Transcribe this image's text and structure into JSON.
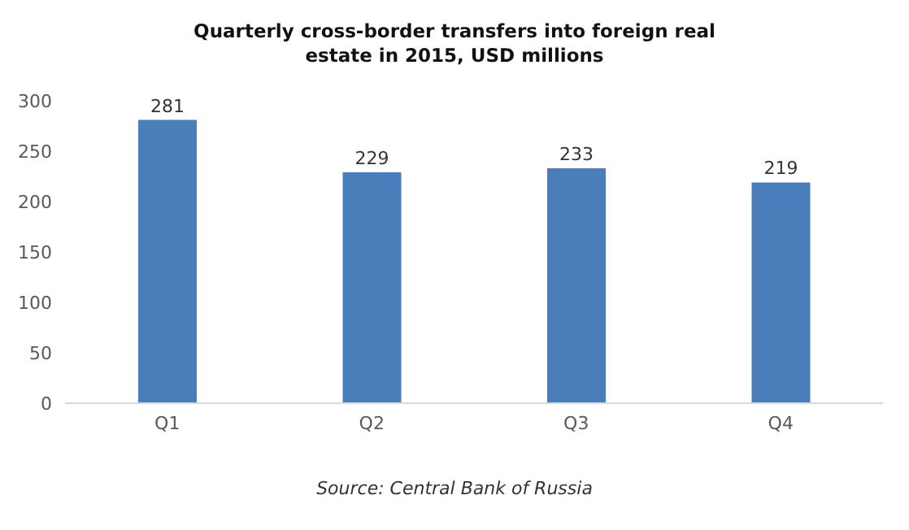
{
  "chart_data": {
    "type": "bar",
    "title": "Quarterly cross-border transfers into foreign real estate in 2015, USD millions",
    "categories": [
      "Q1",
      "Q2",
      "Q3",
      "Q4"
    ],
    "values": [
      281,
      229,
      233,
      219
    ],
    "color": "#4a7ebb",
    "ylim": [
      0,
      300
    ],
    "yticks": [
      0,
      50,
      100,
      150,
      200,
      250,
      300
    ],
    "grid": false,
    "data_labels": true,
    "annotations": [
      "Source: Central Bank of Russia"
    ]
  }
}
